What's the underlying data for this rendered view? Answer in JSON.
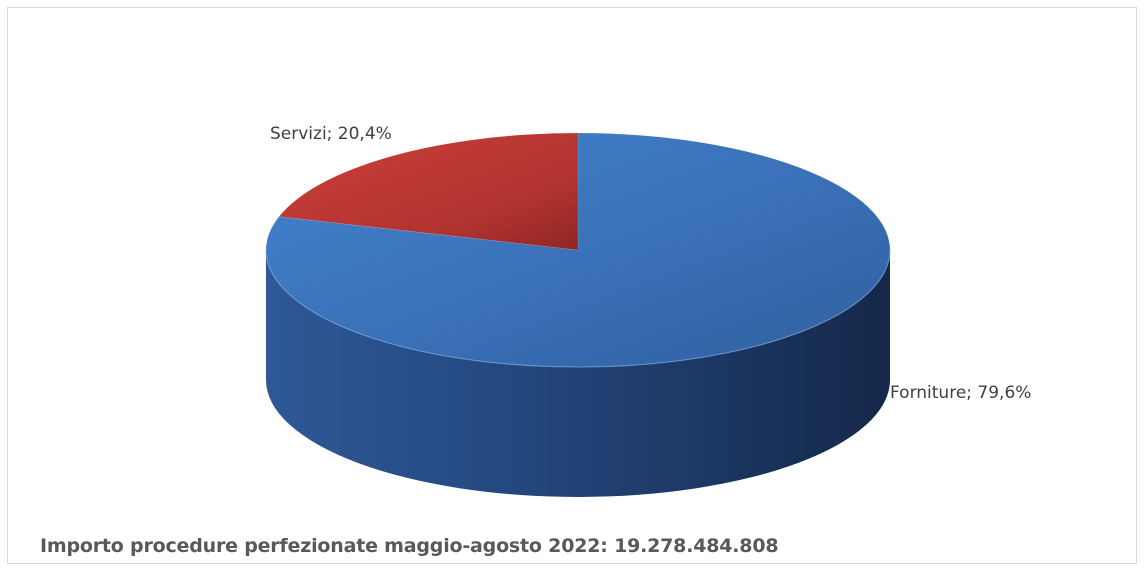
{
  "chart_data": {
    "type": "pie",
    "style": "3d",
    "slices": [
      {
        "label": "Forniture",
        "value": 79.6,
        "display": "Forniture; 79,6%",
        "color": "#3a72b8"
      },
      {
        "label": "Servizi",
        "value": 20.4,
        "display": "Servizi; 20,4%",
        "color": "#b73431"
      }
    ],
    "footer": "Importo procedure perfezionate maggio-agosto 2022:  19.278.484.808"
  }
}
